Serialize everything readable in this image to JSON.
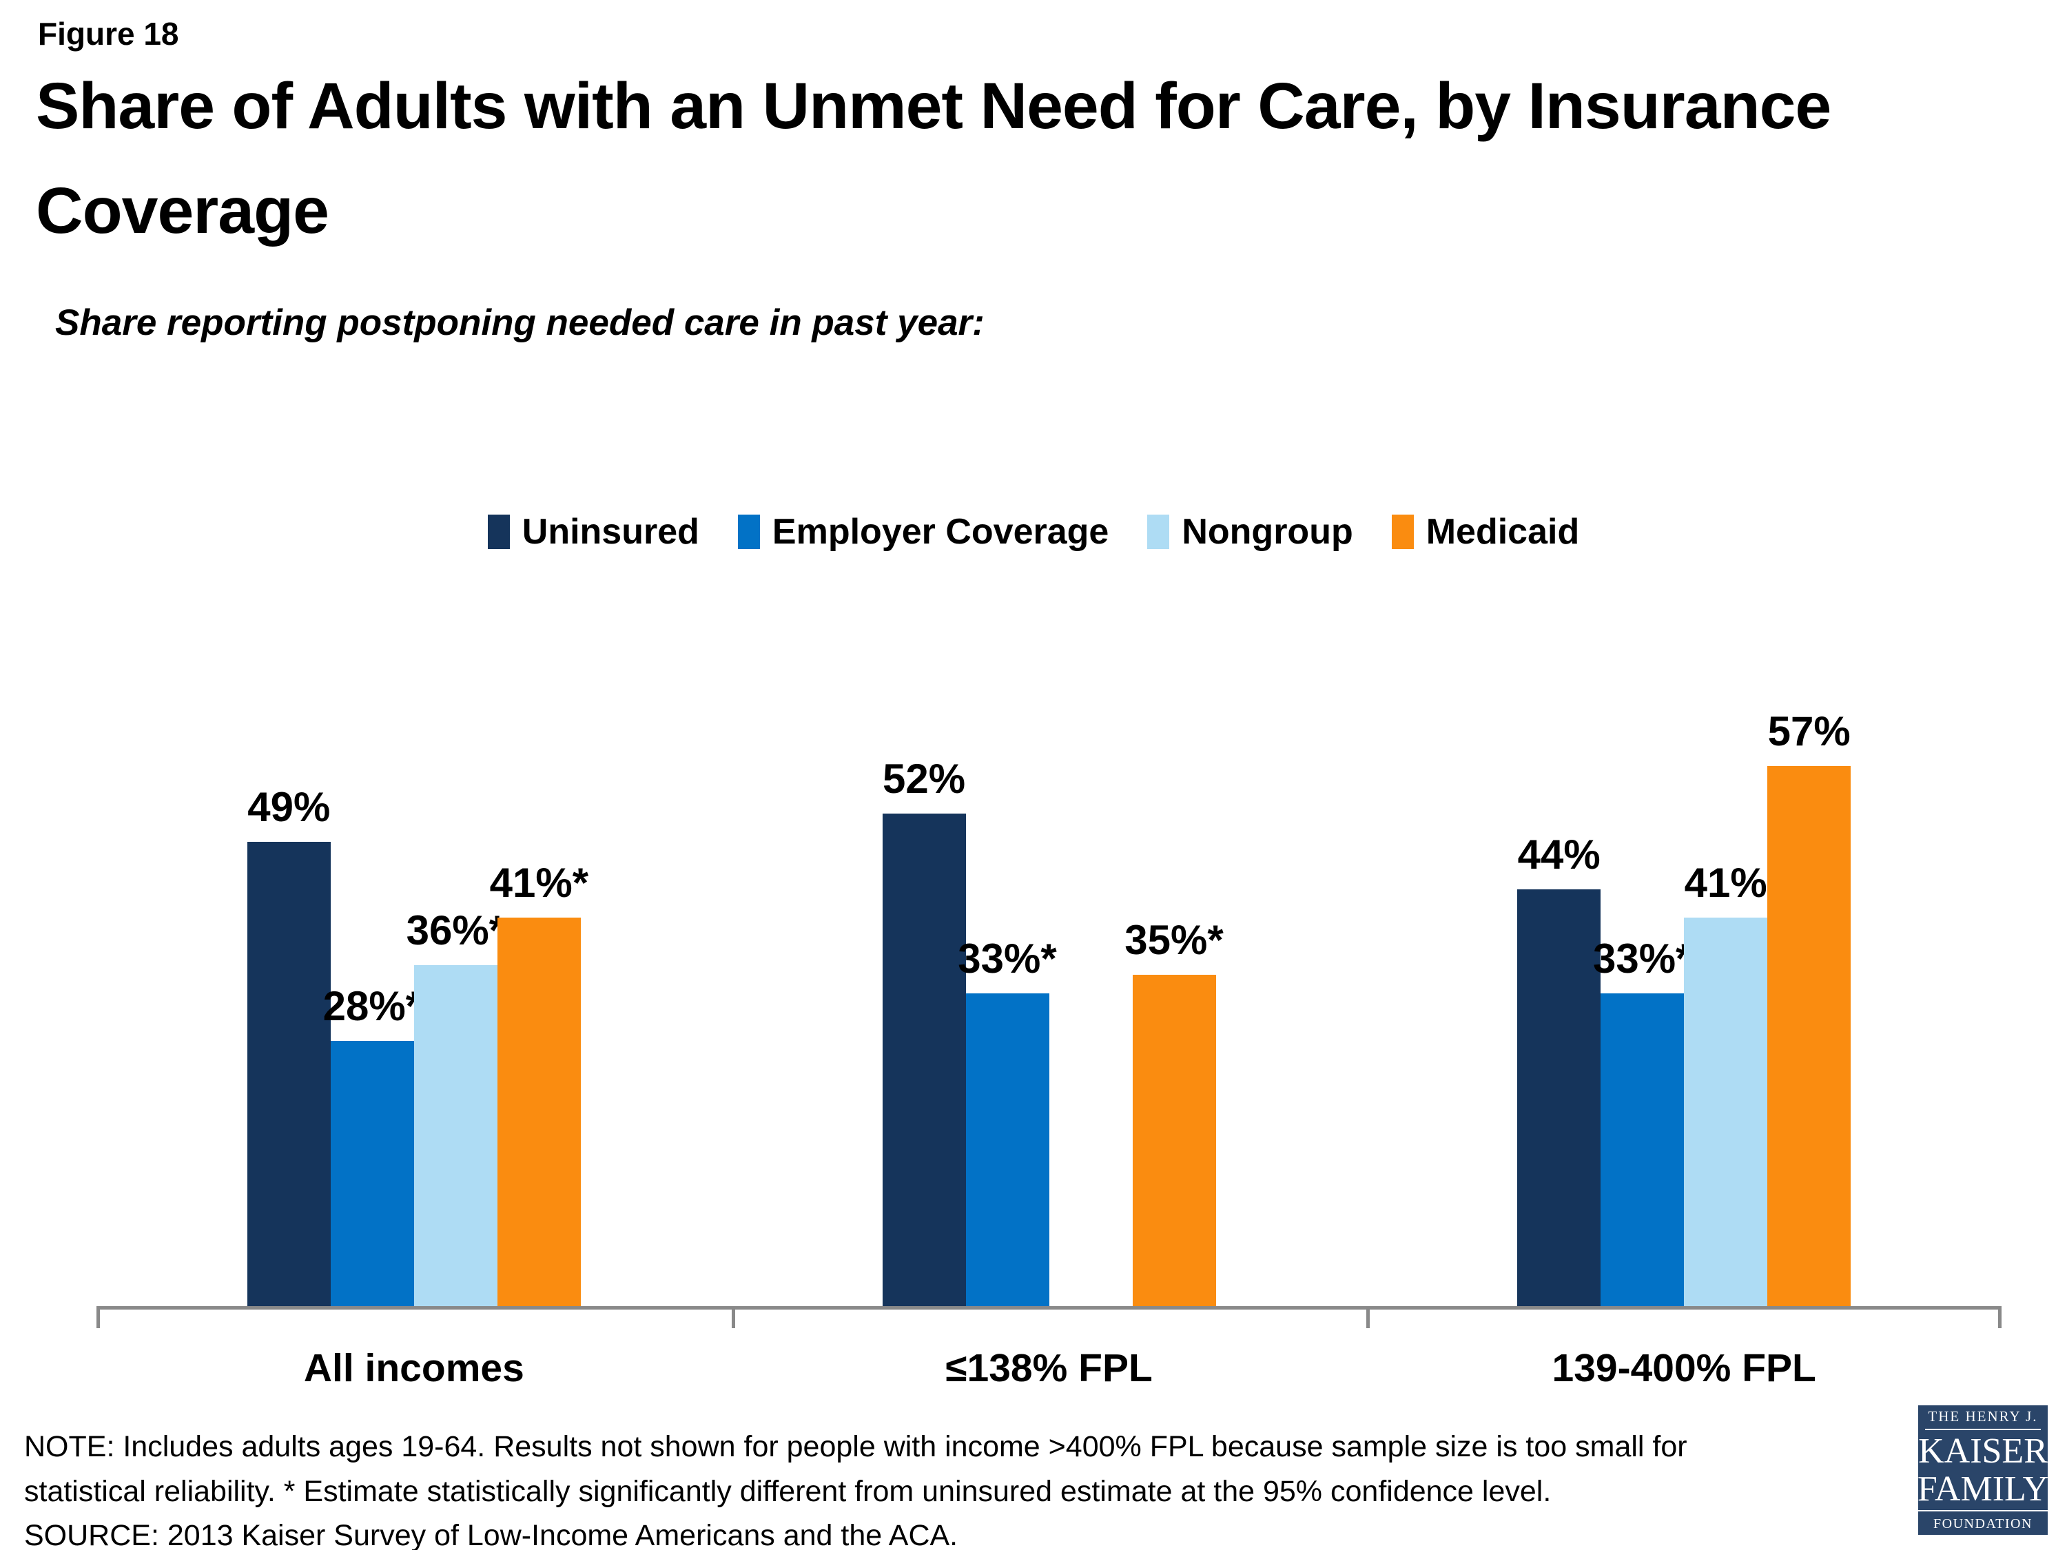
{
  "header": {
    "figure_label": "Figure 18",
    "title_line1": "Share of Adults with an Unmet Need for Care, by Insurance",
    "title_line2": "Coverage",
    "subtitle": "Share reporting postponing needed care in past year:"
  },
  "chart_data": {
    "type": "bar",
    "categories": [
      "All incomes",
      "≤138% FPL",
      "139-400% FPL"
    ],
    "series": [
      {
        "name": "Uninsured",
        "color": "#15345B",
        "values": [
          49,
          52,
          44
        ],
        "labels": [
          "49%",
          "52%",
          "44%"
        ]
      },
      {
        "name": "Employer Coverage",
        "color": "#0272C6",
        "values": [
          28,
          33,
          33
        ],
        "labels": [
          "28%*",
          "33%*",
          "33%*"
        ]
      },
      {
        "name": "Nongroup",
        "color": "#AEDCF4",
        "values": [
          36,
          null,
          41
        ],
        "labels": [
          "36%*",
          null,
          "41%"
        ]
      },
      {
        "name": "Medicaid",
        "color": "#FA8C10",
        "values": [
          41,
          35,
          57
        ],
        "labels": [
          "41%*",
          "35%*",
          "57%"
        ]
      }
    ],
    "ylim": [
      0,
      64
    ],
    "grid": false,
    "legend_position": "top-center",
    "axis_color": "#898989"
  },
  "note": {
    "line1": "NOTE: Includes adults ages 19-64. Results not shown for people with income >400% FPL because sample size is too small for",
    "line2": "statistical reliability. * Estimate statistically significantly different from uninsured estimate at the 95% confidence level.",
    "source": "SOURCE: 2013 Kaiser Survey of Low-Income Americans and the ACA."
  },
  "logo": {
    "bg_color": "#2A4569",
    "line1": "THE HENRY J.",
    "line2": "KAISER",
    "line3": "FAMILY",
    "line4": "FOUNDATION"
  }
}
